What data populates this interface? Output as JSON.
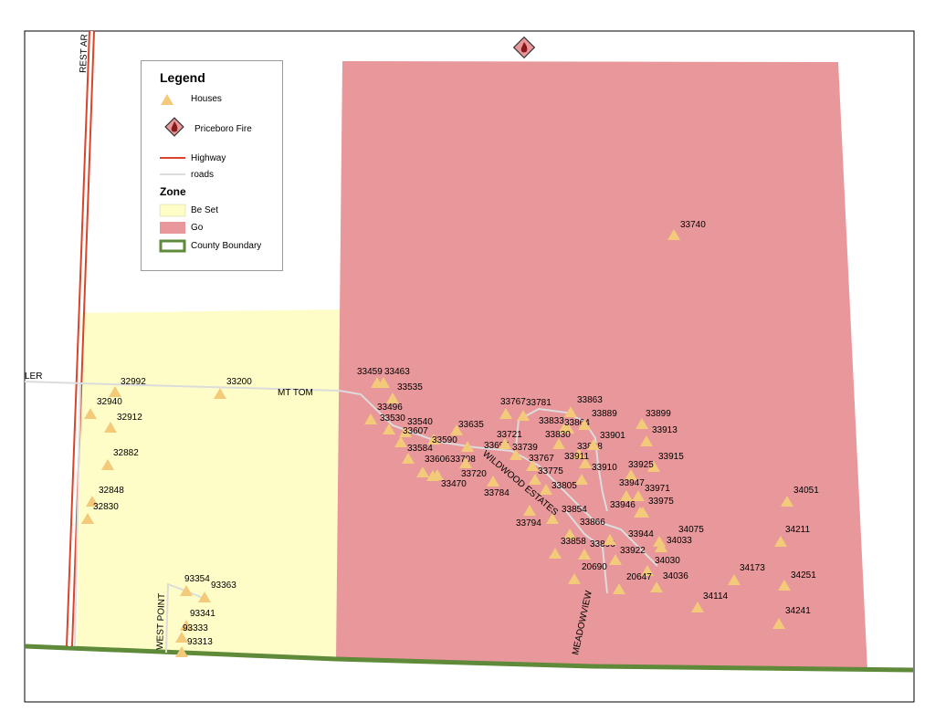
{
  "legend": {
    "title": "Legend",
    "zone_title": "Zone",
    "items": {
      "houses": "Houses",
      "fire": "Priceboro Fire",
      "highway": "Highway",
      "roads": "roads",
      "be_set": "Be Set",
      "go": "Go",
      "county": "County Boundary"
    }
  },
  "colors": {
    "go_zone": "#e8979a",
    "be_set_zone": "#fefdc8",
    "house": "#f3c97a",
    "highway": "#d9442a",
    "roads": "#dcdcdc",
    "county_boundary": "#5e8a3a"
  },
  "road_labels": {
    "rest_area": "REST AR",
    "ler": "LER",
    "mt_tom": "MT TOM",
    "wildwood": "WILDWOOD ESTATES",
    "meadowview": "MEADOWVIEW",
    "west_point": "WEST POINT"
  },
  "houses": [
    {
      "id": "h1",
      "label": "33740"
    },
    {
      "id": "h2",
      "label": "32992"
    },
    {
      "id": "h3",
      "label": "33200"
    },
    {
      "id": "h4",
      "label": "32940"
    },
    {
      "id": "h5",
      "label": "32912"
    },
    {
      "id": "h6",
      "label": "32882"
    },
    {
      "id": "h7",
      "label": "32848"
    },
    {
      "id": "h8",
      "label": "32830"
    },
    {
      "id": "h9",
      "label": "93354"
    },
    {
      "id": "h10",
      "label": "93363"
    },
    {
      "id": "h11",
      "label": "93341"
    },
    {
      "id": "h12",
      "label": "93333"
    },
    {
      "id": "h13",
      "label": "93313"
    },
    {
      "id": "h14",
      "label": "33459"
    },
    {
      "id": "h15",
      "label": "33463"
    },
    {
      "id": "h16",
      "label": "33535"
    },
    {
      "id": "h17",
      "label": "33496"
    },
    {
      "id": "h18",
      "label": "33530"
    },
    {
      "id": "h19",
      "label": "33540"
    },
    {
      "id": "h20",
      "label": "33607"
    },
    {
      "id": "h21",
      "label": "33584"
    },
    {
      "id": "h22",
      "label": "33590"
    },
    {
      "id": "h23",
      "label": "33635"
    },
    {
      "id": "h24",
      "label": "33606"
    },
    {
      "id": "h25",
      "label": "33708"
    },
    {
      "id": "h26",
      "label": "33470"
    },
    {
      "id": "h27",
      "label": "33720"
    },
    {
      "id": "h28",
      "label": "33695"
    },
    {
      "id": "h29",
      "label": "33721"
    },
    {
      "id": "h30",
      "label": "33739"
    },
    {
      "id": "h31",
      "label": "33767"
    },
    {
      "id": "h32",
      "label": "33781"
    },
    {
      "id": "h33",
      "label": "33767"
    },
    {
      "id": "h34",
      "label": "33775"
    },
    {
      "id": "h35",
      "label": "33784"
    },
    {
      "id": "h36",
      "label": "33805"
    },
    {
      "id": "h37",
      "label": "33794"
    },
    {
      "id": "h38",
      "label": "33854"
    },
    {
      "id": "h39",
      "label": "33863"
    },
    {
      "id": "h40",
      "label": "33833"
    },
    {
      "id": "h41",
      "label": "33864"
    },
    {
      "id": "h42",
      "label": "33830"
    },
    {
      "id": "h43",
      "label": "33889"
    },
    {
      "id": "h44",
      "label": "33898"
    },
    {
      "id": "h45",
      "label": "33901"
    },
    {
      "id": "h46",
      "label": "33911"
    },
    {
      "id": "h47",
      "label": "33910"
    },
    {
      "id": "h48",
      "label": "33899"
    },
    {
      "id": "h49",
      "label": "33913"
    },
    {
      "id": "h50",
      "label": "33915"
    },
    {
      "id": "h51",
      "label": "33925"
    },
    {
      "id": "h52",
      "label": "33947"
    },
    {
      "id": "h53",
      "label": "33971"
    },
    {
      "id": "h54",
      "label": "33946"
    },
    {
      "id": "h55",
      "label": "33975"
    },
    {
      "id": "h56",
      "label": "33866"
    },
    {
      "id": "h57",
      "label": "33858"
    },
    {
      "id": "h58",
      "label": "33896"
    },
    {
      "id": "h59",
      "label": "33944"
    },
    {
      "id": "h60",
      "label": "34075"
    },
    {
      "id": "h61",
      "label": "34033"
    },
    {
      "id": "h62",
      "label": "33922"
    },
    {
      "id": "h63",
      "label": "34030"
    },
    {
      "id": "h64",
      "label": "20690"
    },
    {
      "id": "h65",
      "label": "20647"
    },
    {
      "id": "h66",
      "label": "34036"
    },
    {
      "id": "h67",
      "label": "34051"
    },
    {
      "id": "h68",
      "label": "34211"
    },
    {
      "id": "h69",
      "label": "34173"
    },
    {
      "id": "h70",
      "label": "34251"
    },
    {
      "id": "h71",
      "label": "34114"
    },
    {
      "id": "h72",
      "label": "34241"
    }
  ]
}
